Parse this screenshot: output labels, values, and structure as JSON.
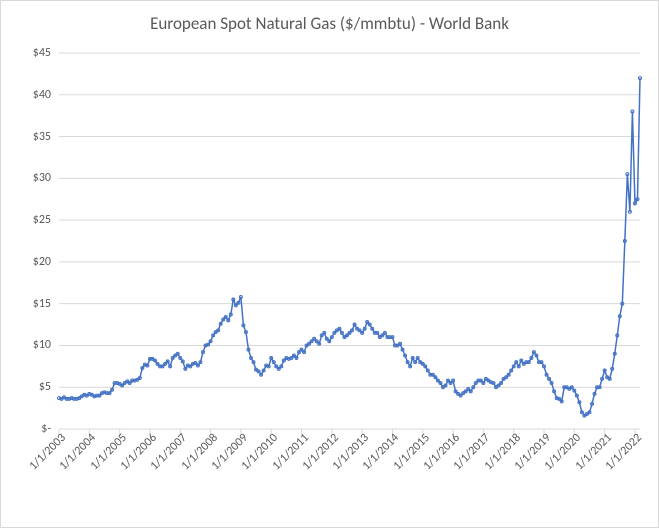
{
  "chart": {
    "type": "line",
    "title": "European Spot Natural Gas ($/mmbtu) - World Bank",
    "title_fontsize": 17,
    "title_color": "#595959",
    "background_color": "#ffffff",
    "plot_background_color": "#ffffff",
    "grid_color": "#d9d9d9",
    "axis_label_color": "#595959",
    "axis_label_fontsize": 12,
    "series": {
      "name": "European Spot Natural Gas",
      "line_color": "#4472c4",
      "marker_color": "#4472c4",
      "marker_style": "circle",
      "marker_size": 3,
      "line_width": 1.5,
      "values": [
        3.7,
        3.6,
        3.8,
        3.6,
        3.6,
        3.7,
        3.6,
        3.6,
        3.7,
        3.9,
        4.1,
        4.0,
        4.2,
        4.1,
        3.9,
        4.0,
        4.0,
        4.3,
        4.4,
        4.3,
        4.3,
        4.7,
        5.5,
        5.5,
        5.4,
        5.2,
        5.5,
        5.7,
        5.5,
        5.8,
        5.8,
        5.9,
        6.1,
        7.3,
        7.7,
        7.6,
        8.4,
        8.4,
        8.2,
        7.8,
        7.5,
        7.5,
        7.8,
        8.1,
        7.5,
        8.5,
        8.8,
        9.0,
        8.5,
        8.1,
        7.2,
        7.6,
        7.5,
        7.8,
        7.9,
        7.6,
        8.0,
        9.2,
        10.0,
        10.1,
        10.5,
        11.2,
        11.6,
        11.8,
        12.6,
        13.1,
        13.4,
        13.0,
        13.7,
        15.5,
        14.8,
        15.1,
        15.8,
        12.4,
        11.6,
        9.5,
        8.5,
        8.0,
        7.1,
        6.9,
        6.5,
        7.0,
        7.6,
        7.5,
        8.5,
        8.0,
        7.5,
        7.2,
        7.5,
        8.2,
        8.5,
        8.4,
        8.5,
        8.8,
        8.5,
        9.2,
        9.5,
        9.2,
        10.0,
        10.2,
        10.5,
        10.8,
        10.5,
        10.2,
        11.2,
        11.5,
        10.8,
        10.5,
        11.0,
        11.5,
        11.8,
        12.0,
        11.5,
        11.0,
        11.2,
        11.5,
        11.8,
        12.5,
        12.0,
        11.8,
        11.5,
        12.0,
        12.8,
        12.5,
        12.0,
        11.5,
        11.5,
        11.0,
        11.2,
        11.5,
        11.0,
        11.0,
        11.0,
        10.0,
        10.0,
        10.2,
        9.5,
        8.8,
        8.0,
        7.5,
        8.5,
        8.0,
        8.5,
        8.0,
        7.8,
        7.5,
        7.0,
        6.5,
        6.5,
        6.2,
        5.8,
        5.5,
        5.0,
        5.2,
        5.8,
        5.5,
        5.8,
        4.5,
        4.2,
        4.0,
        4.3,
        4.5,
        4.8,
        4.5,
        5.0,
        5.5,
        5.8,
        5.8,
        5.5,
        6.0,
        5.8,
        5.6,
        5.5,
        5.0,
        5.2,
        5.5,
        6.0,
        6.2,
        6.5,
        7.0,
        7.5,
        8.0,
        7.5,
        8.2,
        7.8,
        8.0,
        8.0,
        8.5,
        9.2,
        8.8,
        8.0,
        8.0,
        7.5,
        6.5,
        6.0,
        5.5,
        4.5,
        3.7,
        3.6,
        3.3,
        5.0,
        5.0,
        4.8,
        5.0,
        4.6,
        4.0,
        3.2,
        2.0,
        1.6,
        1.8,
        2.0,
        3.0,
        4.2,
        5.0,
        5.0,
        6.0,
        7.0,
        6.2,
        6.0,
        7.2,
        9.0,
        11.2,
        13.5,
        15.0,
        22.5,
        30.5,
        26.0,
        38.0,
        27.0,
        27.5,
        42.0
      ]
    },
    "y_axis": {
      "min": 0,
      "max": 45,
      "tick_step": 5,
      "ticks": [
        0,
        5,
        10,
        15,
        20,
        25,
        30,
        35,
        40,
        45
      ],
      "tick_labels": [
        "$-",
        "$5",
        "$10",
        "$15",
        "$20",
        "$25",
        "$30",
        "$35",
        "$40",
        "$45"
      ],
      "format": "currency"
    },
    "x_axis": {
      "type": "date",
      "start": "2003-01-01",
      "tick_labels": [
        "1/1/2003",
        "1/1/2004",
        "1/1/2005",
        "1/1/2006",
        "1/1/2007",
        "1/1/2008",
        "1/1/2009",
        "1/1/2010",
        "1/1/2011",
        "1/1/2012",
        "1/1/2013",
        "1/1/2014",
        "1/1/2015",
        "1/1/2016",
        "1/1/2017",
        "1/1/2018",
        "1/1/2019",
        "1/1/2020",
        "1/1/2021",
        "1/1/2022"
      ],
      "tick_indices": [
        0,
        12,
        24,
        36,
        48,
        60,
        72,
        84,
        96,
        108,
        120,
        132,
        144,
        156,
        168,
        180,
        192,
        204,
        216,
        228
      ],
      "rotation": -45
    }
  }
}
